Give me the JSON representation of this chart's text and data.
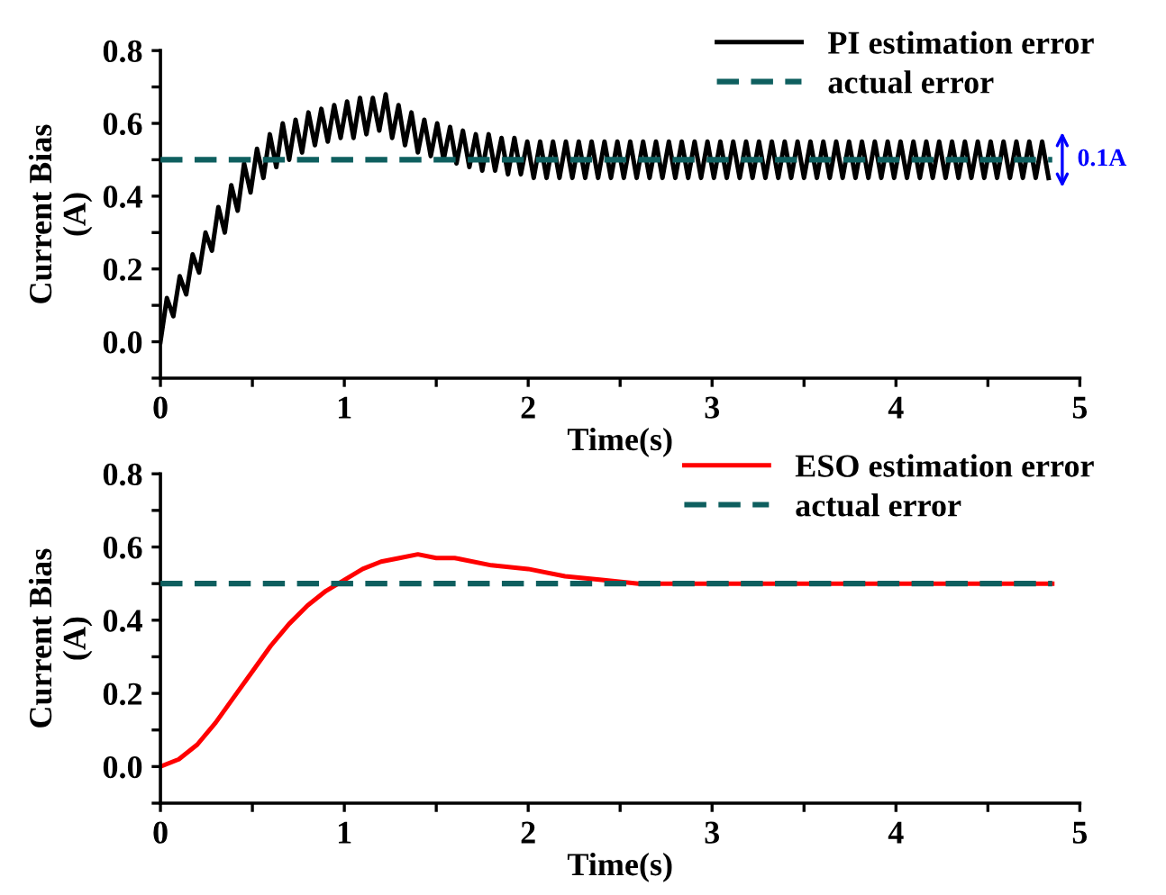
{
  "chart_data": [
    {
      "type": "line",
      "xlabel": "Time(s)",
      "ylabel": "Current Bias\n(A)",
      "xlim": [
        0,
        5
      ],
      "ylim": [
        -0.1,
        0.8
      ],
      "xticks": [
        0,
        {
          "value": 0.5,
          "label": null
        },
        1,
        {
          "value": 1.5,
          "label": null
        },
        2,
        {
          "value": 2.5,
          "label": null
        },
        3,
        {
          "value": 3.5,
          "label": null
        },
        4,
        {
          "value": 4.5,
          "label": null
        },
        5
      ],
      "yticks": [
        {
          "value": -0.1,
          "label": null
        },
        {
          "value": 0,
          "label": "0.0"
        },
        {
          "value": 0.1,
          "label": null
        },
        0.2,
        {
          "value": 0.3,
          "label": null
        },
        0.4,
        {
          "value": 0.5,
          "label": null
        },
        0.6,
        {
          "value": 0.7,
          "label": null
        },
        0.8
      ],
      "legend": "top right",
      "grid": false,
      "annotations": [
        {
          "text": "0.1A",
          "x": 4.85,
          "y": 0.5
        }
      ],
      "series": [
        {
          "name": "PI estimation error",
          "color": "#000000",
          "line_style": "solid",
          "x": [
            0,
            0.035,
            0.07,
            0.105,
            0.14,
            0.175,
            0.21,
            0.245,
            0.28,
            0.315,
            0.35,
            0.385,
            0.42,
            0.455,
            0.49,
            0.525,
            0.56,
            0.595,
            0.63,
            0.665,
            0.7,
            0.735,
            0.77,
            0.805,
            0.84,
            0.875,
            0.91,
            0.945,
            0.98,
            1.015,
            1.05,
            1.085,
            1.12,
            1.155,
            1.19,
            1.225,
            1.26,
            1.295,
            1.33,
            1.365,
            1.4,
            1.435,
            1.47,
            1.505,
            1.54,
            1.575,
            1.61,
            1.645,
            1.68,
            1.715,
            1.75,
            1.785,
            1.82,
            1.855,
            1.89,
            1.925,
            1.96,
            1.995,
            2.03,
            2.065,
            2.1,
            2.135,
            2.17,
            2.205,
            2.24,
            2.275,
            2.31,
            2.345,
            2.38,
            2.415,
            2.45,
            2.485,
            2.52,
            2.555,
            2.59,
            2.625,
            2.66,
            2.695,
            2.73,
            2.765,
            2.8,
            2.835,
            2.87,
            2.905,
            2.94,
            2.975,
            3.01,
            3.045,
            3.08,
            3.115,
            3.15,
            3.185,
            3.22,
            3.255,
            3.29,
            3.325,
            3.36,
            3.395,
            3.43,
            3.465,
            3.5,
            3.535,
            3.57,
            3.605,
            3.64,
            3.675,
            3.71,
            3.745,
            3.78,
            3.815,
            3.85,
            3.885,
            3.92,
            3.955,
            3.99,
            4.025,
            4.06,
            4.095,
            4.13,
            4.165,
            4.2,
            4.235,
            4.27,
            4.305,
            4.34,
            4.375,
            4.41,
            4.445,
            4.48,
            4.515,
            4.55,
            4.585,
            4.62,
            4.655,
            4.69,
            4.725,
            4.76,
            4.795,
            4.83
          ],
          "values": [
            0.0,
            0.12,
            0.07,
            0.18,
            0.13,
            0.24,
            0.19,
            0.3,
            0.25,
            0.37,
            0.3,
            0.43,
            0.36,
            0.49,
            0.41,
            0.53,
            0.45,
            0.57,
            0.48,
            0.6,
            0.5,
            0.61,
            0.52,
            0.63,
            0.54,
            0.64,
            0.55,
            0.65,
            0.56,
            0.66,
            0.56,
            0.67,
            0.57,
            0.67,
            0.58,
            0.68,
            0.56,
            0.65,
            0.54,
            0.63,
            0.52,
            0.61,
            0.51,
            0.6,
            0.5,
            0.59,
            0.49,
            0.58,
            0.48,
            0.57,
            0.47,
            0.57,
            0.47,
            0.56,
            0.46,
            0.56,
            0.46,
            0.55,
            0.45,
            0.55,
            0.45,
            0.55,
            0.45,
            0.55,
            0.45,
            0.55,
            0.45,
            0.55,
            0.45,
            0.55,
            0.45,
            0.55,
            0.45,
            0.55,
            0.45,
            0.55,
            0.45,
            0.55,
            0.45,
            0.55,
            0.45,
            0.55,
            0.45,
            0.55,
            0.45,
            0.55,
            0.45,
            0.55,
            0.45,
            0.55,
            0.45,
            0.55,
            0.45,
            0.55,
            0.45,
            0.55,
            0.45,
            0.55,
            0.45,
            0.55,
            0.45,
            0.55,
            0.45,
            0.55,
            0.45,
            0.55,
            0.45,
            0.55,
            0.45,
            0.55,
            0.45,
            0.55,
            0.45,
            0.55,
            0.45,
            0.55,
            0.45,
            0.55,
            0.45,
            0.55,
            0.45,
            0.55,
            0.45,
            0.55,
            0.45,
            0.55,
            0.45,
            0.55,
            0.45,
            0.55,
            0.45,
            0.55,
            0.45,
            0.55,
            0.45,
            0.55,
            0.45,
            0.55,
            0.45
          ]
        },
        {
          "name": "actual error",
          "color": "#0e5f5f",
          "line_style": "dashed",
          "x": [
            0,
            4.85
          ],
          "values": [
            0.5,
            0.5
          ]
        }
      ]
    },
    {
      "type": "line",
      "xlabel": "Time(s)",
      "ylabel": "Current Bias\n(A)",
      "xlim": [
        0,
        5
      ],
      "ylim": [
        -0.1,
        0.8
      ],
      "xticks": [
        0,
        {
          "value": 0.5,
          "label": null
        },
        1,
        {
          "value": 1.5,
          "label": null
        },
        2,
        {
          "value": 2.5,
          "label": null
        },
        3,
        {
          "value": 3.5,
          "label": null
        },
        4,
        {
          "value": 4.5,
          "label": null
        },
        5
      ],
      "yticks": [
        {
          "value": -0.1,
          "label": null
        },
        {
          "value": 0,
          "label": "0.0"
        },
        {
          "value": 0.1,
          "label": null
        },
        0.2,
        {
          "value": 0.3,
          "label": null
        },
        0.4,
        {
          "value": 0.5,
          "label": null
        },
        0.6,
        {
          "value": 0.7,
          "label": null
        },
        0.8
      ],
      "legend": "top right",
      "grid": false,
      "series": [
        {
          "name": "ESO estimation error",
          "color": "#ff0000",
          "line_style": "solid",
          "x": [
            0,
            0.1,
            0.2,
            0.3,
            0.4,
            0.5,
            0.6,
            0.7,
            0.8,
            0.9,
            1.0,
            1.1,
            1.2,
            1.3,
            1.4,
            1.5,
            1.6,
            1.8,
            2.0,
            2.2,
            2.4,
            2.6,
            2.8,
            3.0,
            3.5,
            4.0,
            4.5,
            4.85
          ],
          "values": [
            0.0,
            0.02,
            0.06,
            0.12,
            0.19,
            0.26,
            0.33,
            0.39,
            0.44,
            0.48,
            0.51,
            0.54,
            0.56,
            0.57,
            0.58,
            0.57,
            0.57,
            0.55,
            0.54,
            0.52,
            0.51,
            0.5,
            0.5,
            0.5,
            0.5,
            0.5,
            0.5,
            0.5
          ]
        },
        {
          "name": "actual error",
          "color": "#0e5f5f",
          "line_style": "dashed",
          "x": [
            0,
            4.85
          ],
          "values": [
            0.5,
            0.5
          ]
        }
      ]
    }
  ]
}
